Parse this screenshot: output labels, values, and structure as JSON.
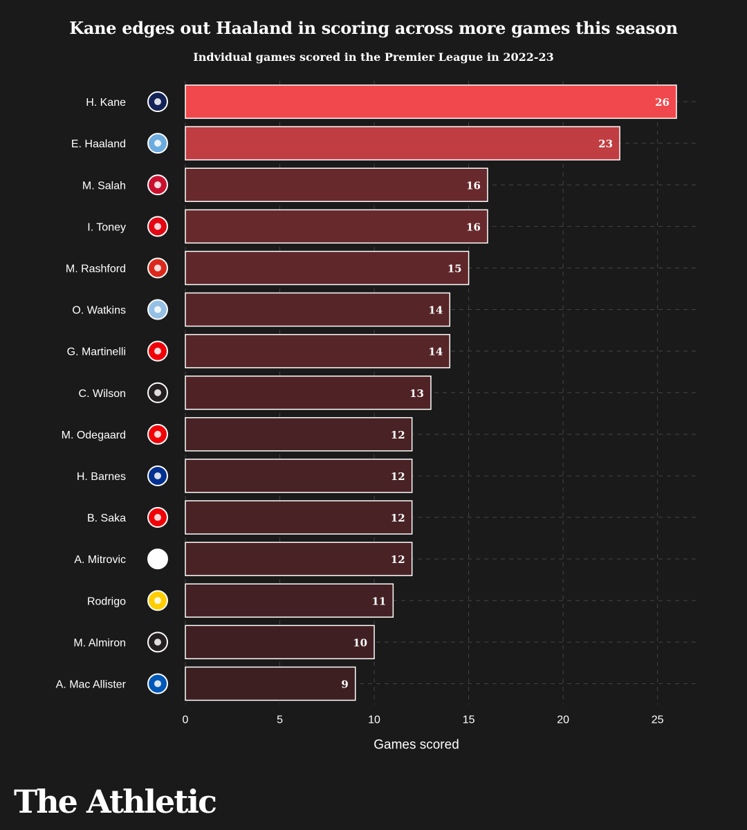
{
  "brand": "The Athletic",
  "chart_data": {
    "type": "bar",
    "orientation": "horizontal",
    "title": "Kane edges out Haaland in scoring across more games this season",
    "subtitle": "Indvidual games scored in the Premier League in 2022-23",
    "xlabel": "Games scored",
    "ylabel": "",
    "xlim": [
      0,
      27.1
    ],
    "xticks": [
      0,
      5,
      10,
      15,
      20,
      25
    ],
    "grid": true,
    "categories": [
      "H. Kane",
      "E. Haaland",
      "M. Salah",
      "I. Toney",
      "M. Rashford",
      "O. Watkins",
      "G. Martinelli",
      "C. Wilson",
      "M. Odegaard",
      "H. Barnes",
      "B. Saka",
      "A. Mitrovic",
      "Rodrigo",
      "M. Almiron",
      "A. Mac Allister"
    ],
    "values": [
      26,
      23,
      16,
      16,
      15,
      14,
      14,
      13,
      12,
      12,
      12,
      12,
      11,
      10,
      9
    ],
    "clubs": [
      "tottenham",
      "man-city",
      "liverpool",
      "brentford",
      "man-united",
      "aston-villa",
      "arsenal",
      "newcastle",
      "arsenal",
      "leicester",
      "arsenal",
      "fulham",
      "leeds",
      "newcastle",
      "brighton"
    ],
    "colors": {
      "high": "#f0484c",
      "low": "#3d1f22",
      "bar_stroke": "#ffffff",
      "grid": "#444444",
      "background": "#1a1a1a",
      "text": "#ffffff"
    },
    "club_colors": {
      "tottenham": "#132257",
      "man-city": "#6cabdd",
      "liverpool": "#c8102e",
      "brentford": "#e30613",
      "man-united": "#da291c",
      "aston-villa": "#95bfe5",
      "arsenal": "#ef0107",
      "newcastle": "#241f20",
      "leicester": "#003090",
      "fulham": "#ffffff",
      "leeds": "#ffcd00",
      "brighton": "#0057b8"
    }
  }
}
